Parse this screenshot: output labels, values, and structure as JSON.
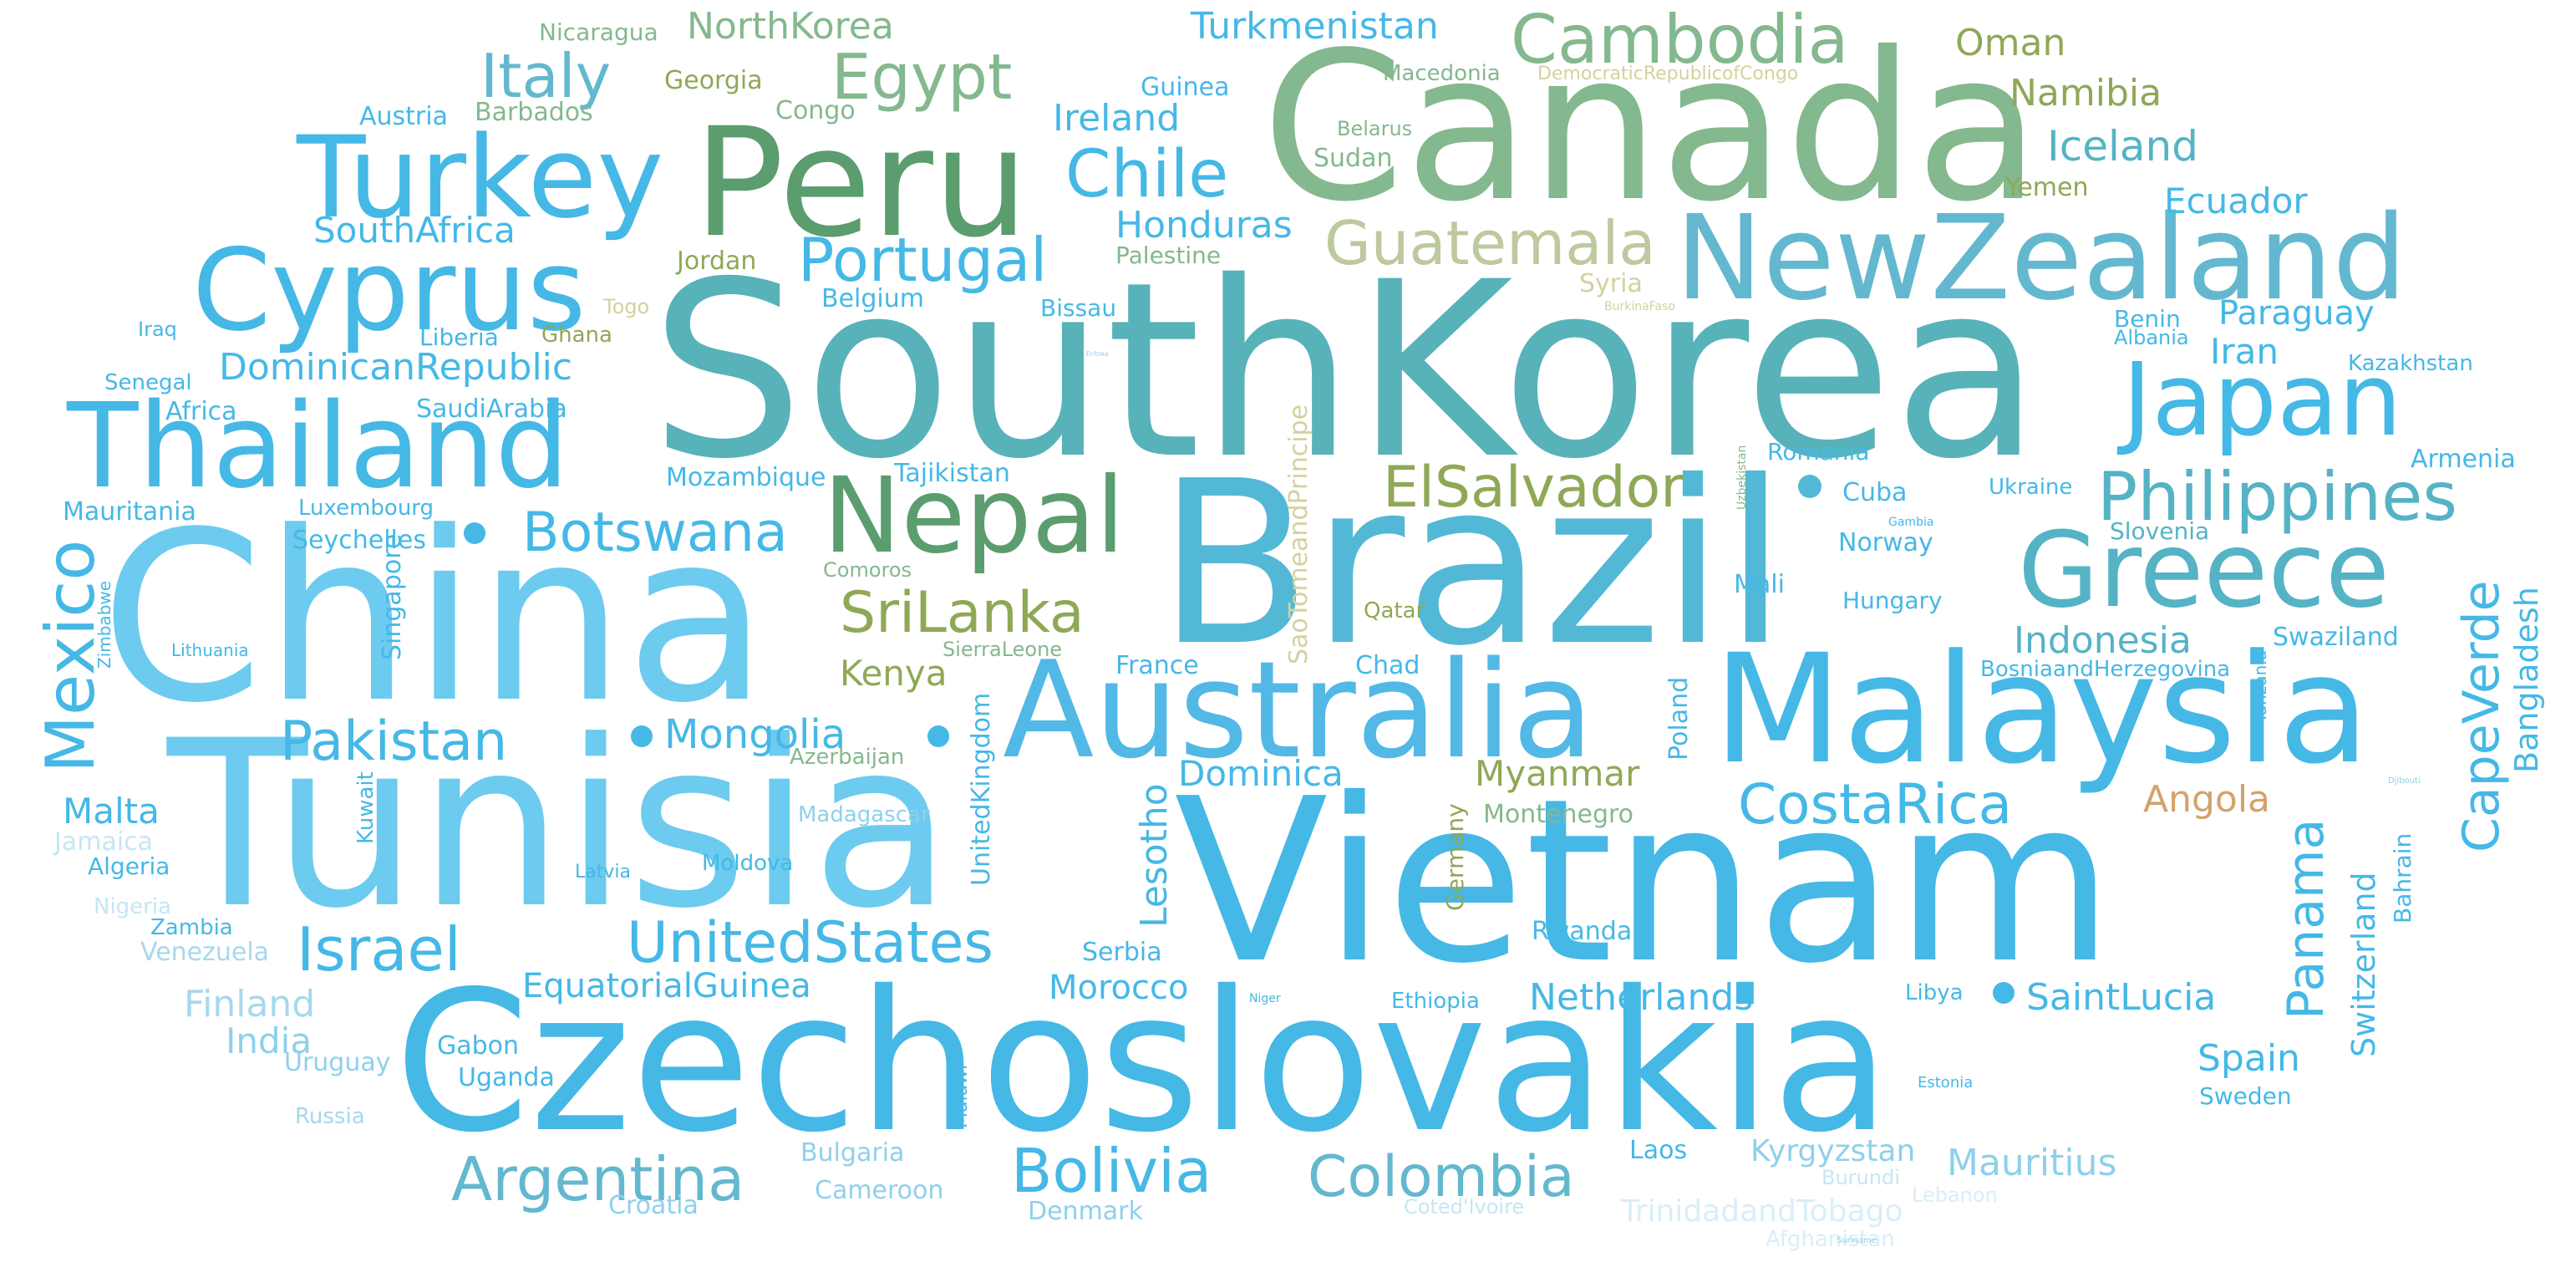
{
  "words": [
    {
      "text": "SouthKorea",
      "color": "#58b2b9"
    },
    {
      "text": "Canada",
      "color": "#84b88e"
    },
    {
      "text": "Brazil",
      "color": "#53b8d6"
    },
    {
      "text": "China",
      "color": "#6ccbef"
    },
    {
      "text": "Tunisia",
      "color": "#6ccbef"
    },
    {
      "text": "Vietnam",
      "color": "#45b8e6"
    },
    {
      "text": "Czechoslovakia",
      "color": "#45b8e6"
    },
    {
      "text": "Malaysia",
      "color": "#45b8e6"
    },
    {
      "text": "Peru",
      "color": "#5b9d6e"
    },
    {
      "text": "Australia",
      "color": "#52b8e6"
    },
    {
      "text": "NewZealand",
      "color": "#63b8cf"
    },
    {
      "text": "Thailand",
      "color": "#45b8e6"
    },
    {
      "text": "Turkey",
      "color": "#45b8e6"
    },
    {
      "text": "Cyprus",
      "color": "#45b8e6"
    },
    {
      "text": "Nepal",
      "color": "#5b9d6e"
    },
    {
      "text": "Greece",
      "color": "#55b3c5"
    },
    {
      "text": "Japan",
      "color": "#45b8e6"
    },
    {
      "text": "Philippines",
      "color": "#55b3c5"
    },
    {
      "text": "Mexico",
      "color": "#45b8e6"
    },
    {
      "text": "Cambodia",
      "color": "#84b88e"
    },
    {
      "text": "Egypt",
      "color": "#84b88e"
    },
    {
      "text": "Italy",
      "color": "#63b8cf"
    },
    {
      "text": "Chile",
      "color": "#45b8e6"
    },
    {
      "text": "Portugal",
      "color": "#45b8e6"
    },
    {
      "text": "Guatemala",
      "color": "#bdc99e"
    },
    {
      "text": "ElSalvador",
      "color": "#8fa856"
    },
    {
      "text": "SriLanka",
      "color": "#8fa856"
    },
    {
      "text": "Botswana",
      "color": "#45b8e6"
    },
    {
      "text": "Pakistan",
      "color": "#45b8e6"
    },
    {
      "text": "Mongolia",
      "color": "#45b8e6"
    },
    {
      "text": "Israel",
      "color": "#45b8e6"
    },
    {
      "text": "UnitedStates",
      "color": "#45b8e6"
    },
    {
      "text": "Argentina",
      "color": "#63b8cf"
    },
    {
      "text": "Bolivia",
      "color": "#45b8e6"
    },
    {
      "text": "Colombia",
      "color": "#63b8cf"
    },
    {
      "text": "CostaRica",
      "color": "#45b8e6"
    },
    {
      "text": "Panama",
      "color": "#45b8e6"
    },
    {
      "text": "CapeVerde",
      "color": "#45b8e6"
    },
    {
      "text": "Indonesia",
      "color": "#55b3c5"
    },
    {
      "text": "DominicanRepublic",
      "color": "#45b8e6"
    },
    {
      "text": "SouthAfrica",
      "color": "#45b8e6"
    },
    {
      "text": "NorthKorea",
      "color": "#84b88e"
    },
    {
      "text": "Turkmenistan",
      "color": "#45b8e6"
    },
    {
      "text": "Ireland",
      "color": "#45b8e6"
    },
    {
      "text": "Honduras",
      "color": "#45b8e6"
    },
    {
      "text": "Iceland",
      "color": "#55b3c5"
    },
    {
      "text": "Namibia",
      "color": "#8fa856"
    },
    {
      "text": "Oman",
      "color": "#8fa856"
    },
    {
      "text": "Ecuador",
      "color": "#45b8e6"
    },
    {
      "text": "Paraguay",
      "color": "#45b8e6"
    },
    {
      "text": "Iran",
      "color": "#45b8e6"
    },
    {
      "text": "Bangladesh",
      "color": "#45b8e6"
    },
    {
      "text": "Kenya",
      "color": "#8fa856"
    },
    {
      "text": "Dominica",
      "color": "#45b8e6"
    },
    {
      "text": "Myanmar",
      "color": "#8fa856"
    },
    {
      "text": "Angola",
      "color": "#d4a36a"
    },
    {
      "text": "Switzerland",
      "color": "#45b8e6"
    },
    {
      "text": "SaintLucia",
      "color": "#45b8e6"
    },
    {
      "text": "Netherlands",
      "color": "#45b8e6"
    },
    {
      "text": "EquatorialGuinea",
      "color": "#45b8e6"
    },
    {
      "text": "Morocco",
      "color": "#45b8e6"
    },
    {
      "text": "Spain",
      "color": "#45b8e6"
    },
    {
      "text": "Mauritius",
      "color": "#8fd0eb"
    },
    {
      "text": "Malta",
      "color": "#45b8e6"
    },
    {
      "text": "Finland",
      "color": "#a6d8ee"
    },
    {
      "text": "India",
      "color": "#8fd0eb"
    },
    {
      "text": "Lesotho",
      "color": "#45b8e6"
    },
    {
      "text": "Kyrgyzstan",
      "color": "#8fd0eb"
    },
    {
      "text": "TrinidadandTobago",
      "color": "#d9eef8"
    },
    {
      "text": "Georgia",
      "color": "#8fa856"
    },
    {
      "text": "Nicaragua",
      "color": "#84b88e"
    },
    {
      "text": "Macedonia",
      "color": "#84b88e"
    },
    {
      "text": "DemocraticRepublicofCongo",
      "color": "#d4d19e"
    },
    {
      "text": "Guinea",
      "color": "#45b8e6"
    },
    {
      "text": "Congo",
      "color": "#84b88e"
    },
    {
      "text": "Austria",
      "color": "#45b8e6"
    },
    {
      "text": "Barbados",
      "color": "#84b88e"
    },
    {
      "text": "Belarus",
      "color": "#84b88e"
    },
    {
      "text": "Sudan",
      "color": "#84b88e"
    },
    {
      "text": "Yemen",
      "color": "#8fa856"
    },
    {
      "text": "Palestine",
      "color": "#84b88e"
    },
    {
      "text": "Jordan",
      "color": "#8fa856"
    },
    {
      "text": "Belgium",
      "color": "#45b8e6"
    },
    {
      "text": "Bissau",
      "color": "#45b8e6"
    },
    {
      "text": "Syria",
      "color": "#d4d19e"
    },
    {
      "text": "BurkinaFaso",
      "color": "#d4d19e"
    },
    {
      "text": "Togo",
      "color": "#d4d19e"
    },
    {
      "text": "Ghana",
      "color": "#8fa856"
    },
    {
      "text": "Liberia",
      "color": "#45b8e6"
    },
    {
      "text": "Iraq",
      "color": "#45b8e6"
    },
    {
      "text": "Senegal",
      "color": "#45b8e6"
    },
    {
      "text": "Africa",
      "color": "#45b8e6"
    },
    {
      "text": "SaudiArabia",
      "color": "#45b8e6"
    },
    {
      "text": "Benin",
      "color": "#45b8e6"
    },
    {
      "text": "Albania",
      "color": "#45b8e6"
    },
    {
      "text": "Kazakhstan",
      "color": "#45b8e6"
    },
    {
      "text": "Armenia",
      "color": "#45b8e6"
    },
    {
      "text": "Romania",
      "color": "#45b8e6"
    },
    {
      "text": "Ukraine",
      "color": "#45b8e6"
    },
    {
      "text": "Slovenia",
      "color": "#55b3c5"
    },
    {
      "text": "Cuba",
      "color": "#45b8e6"
    },
    {
      "text": "Gambia",
      "color": "#45b8e6"
    },
    {
      "text": "Norway",
      "color": "#45b8e6"
    },
    {
      "text": "Mali",
      "color": "#45b8e6"
    },
    {
      "text": "Hungary",
      "color": "#45b8e6"
    },
    {
      "text": "Swaziland",
      "color": "#45b8e6"
    },
    {
      "text": "BosniaandHerzegovina",
      "color": "#45b8e6"
    },
    {
      "text": "Tanzania",
      "color": "#45b8e6"
    },
    {
      "text": "Bahrain",
      "color": "#45b8e6"
    },
    {
      "text": "Djibouti",
      "color": "#8fd0eb"
    },
    {
      "text": "Tajikistan",
      "color": "#45b8e6"
    },
    {
      "text": "Mozambique",
      "color": "#45b8e6"
    },
    {
      "text": "Uzbekistan",
      "color": "#84b88e"
    },
    {
      "text": "Mauritania",
      "color": "#45b8e6"
    },
    {
      "text": "Luxembourg",
      "color": "#45b8e6"
    },
    {
      "text": "Seychelles",
      "color": "#45b8e6"
    },
    {
      "text": "Comoros",
      "color": "#84b88e"
    },
    {
      "text": "Qatar",
      "color": "#8fa856"
    },
    {
      "text": "SierraLeone",
      "color": "#84b88e"
    },
    {
      "text": "SaoTomeandPrincipe",
      "color": "#d4d19e"
    },
    {
      "text": "France",
      "color": "#45b8e6"
    },
    {
      "text": "Chad",
      "color": "#45b8e6"
    },
    {
      "text": "Poland",
      "color": "#45b8e6"
    },
    {
      "text": "Germany",
      "color": "#8fa856"
    },
    {
      "text": "Montenegro",
      "color": "#84b88e"
    },
    {
      "text": "Singapore",
      "color": "#45b8e6"
    },
    {
      "text": "Zimbabwe",
      "color": "#45b8e6"
    },
    {
      "text": "Lithuania",
      "color": "#45b8e6"
    },
    {
      "text": "Kuwait",
      "color": "#45b8e6"
    },
    {
      "text": "Azerbaijan",
      "color": "#84b88e"
    },
    {
      "text": "UnitedKingdom",
      "color": "#45b8e6"
    },
    {
      "text": "Madagascar",
      "color": "#8fd0eb"
    },
    {
      "text": "Jamaica",
      "color": "#c6e6f4"
    },
    {
      "text": "Algeria",
      "color": "#45b8e6"
    },
    {
      "text": "Latvia",
      "color": "#45b8e6"
    },
    {
      "text": "Moldova",
      "color": "#45b8e6"
    },
    {
      "text": "Nigeria",
      "color": "#c6e6f4"
    },
    {
      "text": "Zambia",
      "color": "#45b8e6"
    },
    {
      "text": "Venezuela",
      "color": "#a6d8ee"
    },
    {
      "text": "Serbia",
      "color": "#45b8e6"
    },
    {
      "text": "Rwanda",
      "color": "#45b8e6"
    },
    {
      "text": "Ethiopia",
      "color": "#45b8e6"
    },
    {
      "text": "Niger",
      "color": "#45b8e6"
    },
    {
      "text": "Libya",
      "color": "#45b8e6"
    },
    {
      "text": "Sweden",
      "color": "#45b8e6"
    },
    {
      "text": "Estonia",
      "color": "#45b8e6"
    },
    {
      "text": "Gabon",
      "color": "#45b8e6"
    },
    {
      "text": "Uganda",
      "color": "#45b8e6"
    },
    {
      "text": "Uruguay",
      "color": "#8fd0eb"
    },
    {
      "text": "Malawi",
      "color": "#45b8e6"
    },
    {
      "text": "Russia",
      "color": "#a6d8ee"
    },
    {
      "text": "Laos",
      "color": "#45b8e6"
    },
    {
      "text": "Burundi",
      "color": "#c6e6f4"
    },
    {
      "text": "Lebanon",
      "color": "#d9eef8"
    },
    {
      "text": "Bulgaria",
      "color": "#8fd0eb"
    },
    {
      "text": "Cameroon",
      "color": "#8fd0eb"
    },
    {
      "text": "Croatia",
      "color": "#8fd0eb"
    },
    {
      "text": "Denmark",
      "color": "#8fd0eb"
    },
    {
      "text": "Coted'Ivoire",
      "color": "#c6e6f4"
    },
    {
      "text": "Afghanistan",
      "color": "#d9eef8"
    },
    {
      "text": "Suriname",
      "color": "#8fd0eb"
    },
    {
      "text": "Eritrea",
      "color": "#8fd0eb"
    }
  ]
}
